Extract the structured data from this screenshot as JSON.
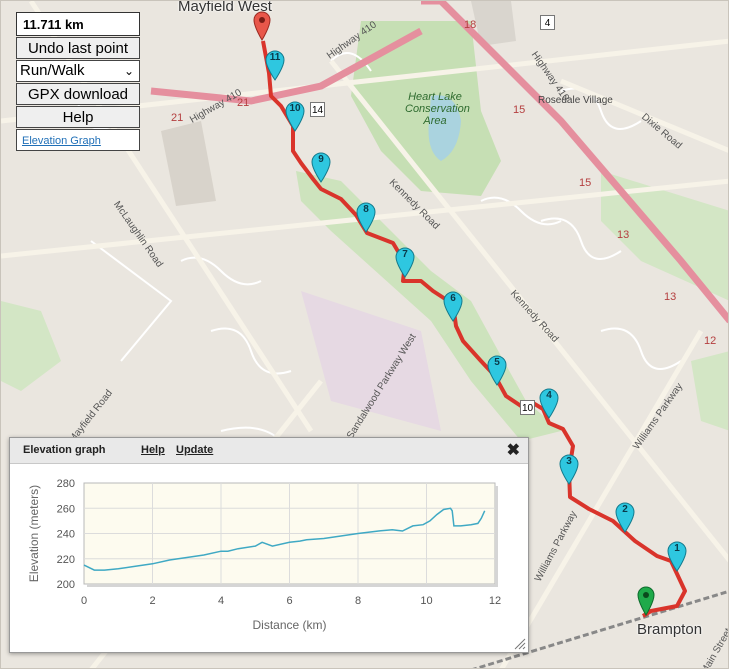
{
  "controls": {
    "distance": "11.711 km",
    "undo_label": "Undo last point",
    "activity_selected": "Run/Walk",
    "gpx_label": "GPX download",
    "help_label": "Help",
    "elevation_link": "Elevation Graph"
  },
  "map": {
    "towns": [
      "Mayfield West",
      "Brampton",
      "Rosedale Village"
    ],
    "park_label": [
      "Heart Lake",
      "Conservation",
      "Area"
    ],
    "roads": [
      "Highway 410",
      "Highway 410",
      "Highway 410",
      "Kennedy Road",
      "Kennedy Road",
      "McLaughlin Road",
      "Mayfield Road",
      "Sandalwood Parkway West",
      "Williams Parkway",
      "Dixie Road",
      "Main Street",
      "Williams Parkway"
    ],
    "highway_numbers": [
      "18",
      "21",
      "21",
      "15",
      "15",
      "13",
      "13",
      "12"
    ],
    "shields": [
      "4",
      "14",
      "10"
    ],
    "markers": [
      "11",
      "10",
      "9",
      "8",
      "7",
      "6",
      "5",
      "4",
      "3",
      "2",
      "1"
    ],
    "route_color": "#d9342b",
    "marker_color": "#2ec7e0",
    "start_color": "#1faa4a",
    "end_color": "#e8574a"
  },
  "graph_panel": {
    "title": "Elevation graph",
    "help": "Help",
    "update": "Update",
    "close_icon": "close-icon"
  },
  "chart_data": {
    "type": "line",
    "xlabel": "Distance (km)",
    "ylabel": "Elevation (meters)",
    "xlim": [
      0,
      12
    ],
    "ylim": [
      200,
      280
    ],
    "xticks": [
      "0",
      "2",
      "4",
      "6",
      "8",
      "10",
      "12"
    ],
    "yticks": [
      "200",
      "220",
      "240",
      "260",
      "280"
    ],
    "grid": true,
    "color": "#3fa9c4",
    "series": [
      {
        "x": [
          0,
          0.3,
          0.6,
          1.0,
          1.5,
          2.0,
          2.5,
          3.0,
          3.5,
          4.0,
          4.2,
          4.5,
          5.0,
          5.2,
          5.5,
          6.0,
          6.3,
          6.5,
          7.0,
          7.5,
          8.0,
          8.3,
          8.6,
          9.0,
          9.3,
          9.6,
          9.9,
          10.1,
          10.3,
          10.5,
          10.7,
          10.75,
          10.8,
          11.0,
          11.3,
          11.5,
          11.6,
          11.7
        ],
        "y": [
          215,
          211,
          211,
          212,
          214,
          216,
          219,
          221,
          223,
          226,
          226,
          228,
          230,
          233,
          230,
          233,
          234,
          235,
          236,
          238,
          240,
          241,
          242,
          243,
          242,
          246,
          247,
          250,
          255,
          259,
          260,
          258,
          246,
          246,
          247,
          248,
          252,
          258
        ]
      }
    ]
  }
}
